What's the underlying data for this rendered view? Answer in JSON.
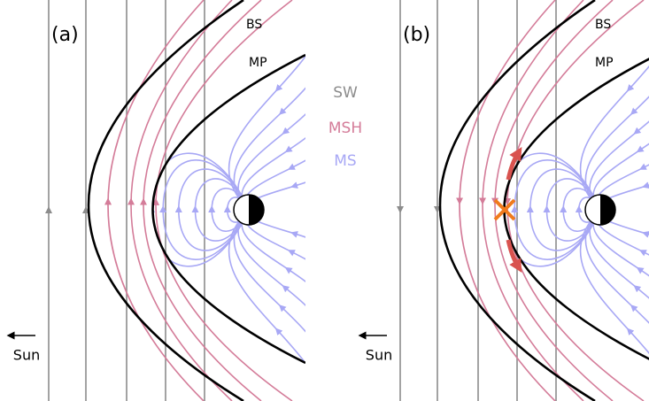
{
  "panels": [
    {
      "label": "(a)",
      "bs_label": "BS",
      "mp_label": "MP",
      "sun_label": "Sun"
    },
    {
      "label": "(b)",
      "bs_label": "BS",
      "mp_label": "MP",
      "sun_label": "Sun"
    }
  ],
  "legend": [
    {
      "label": "SW"
    },
    {
      "label": "MSH"
    },
    {
      "label": "MS"
    }
  ]
}
